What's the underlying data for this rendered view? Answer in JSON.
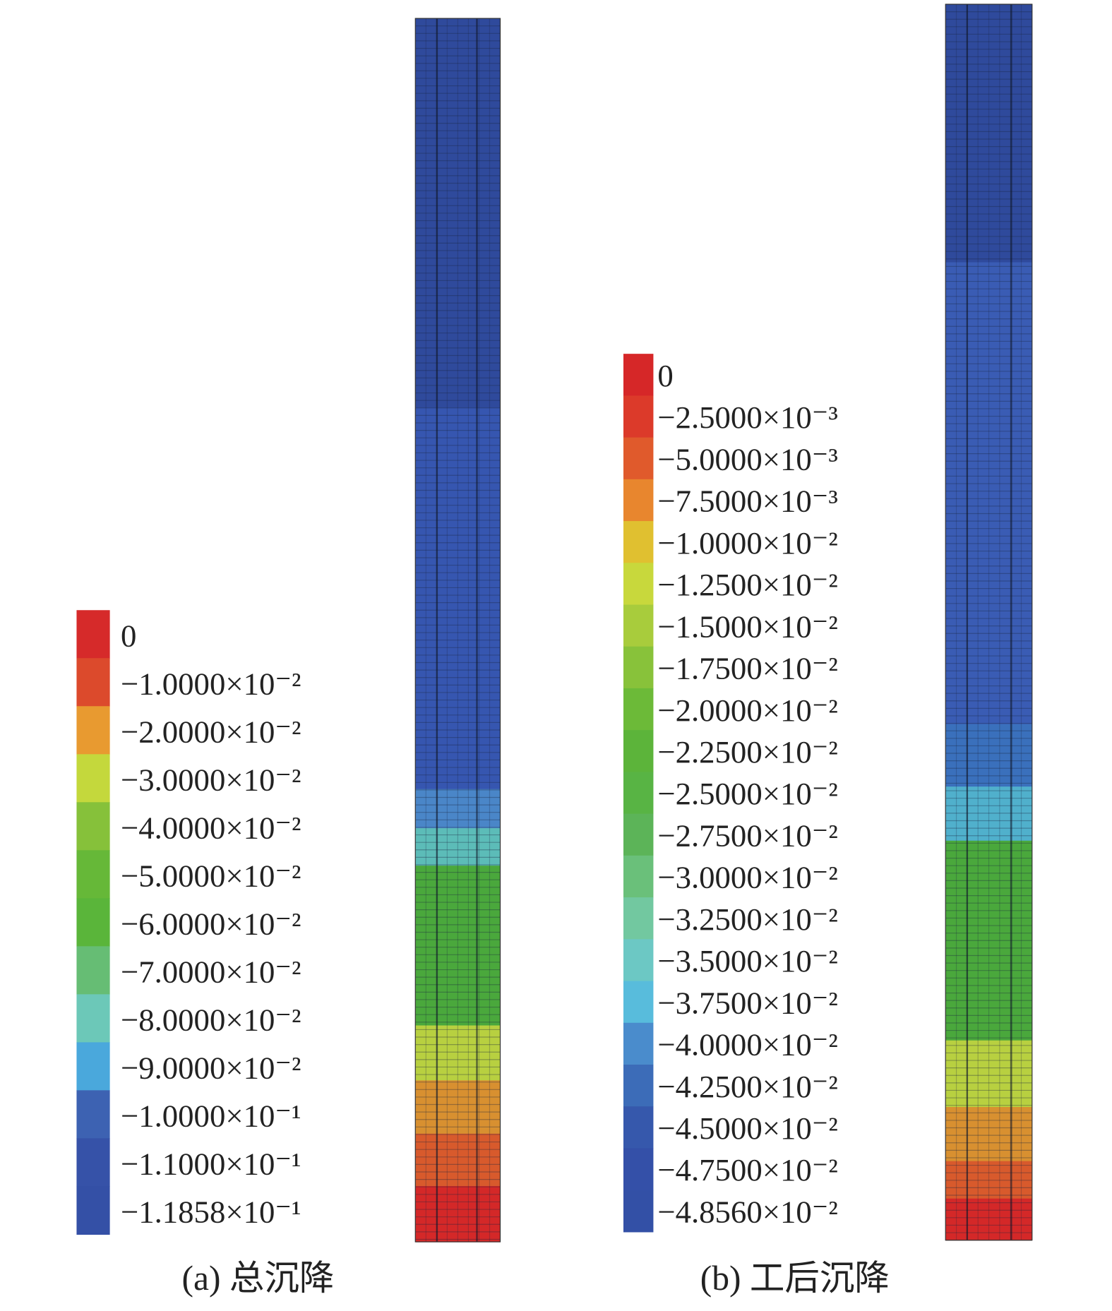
{
  "panels": [
    {
      "caption": "(a) 总沉降",
      "legend": {
        "labels": [
          "0",
          "−1.0000×10⁻²",
          "−2.0000×10⁻²",
          "−3.0000×10⁻²",
          "−4.0000×10⁻²",
          "−5.0000×10⁻²",
          "−6.0000×10⁻²",
          "−7.0000×10⁻²",
          "−8.0000×10⁻²",
          "−9.0000×10⁻²",
          "−1.0000×10⁻¹",
          "−1.1000×10⁻¹",
          "−1.1858×10⁻¹"
        ],
        "colors": [
          "#d62a2a",
          "#dc4a2c",
          "#e89a30",
          "#c4d83c",
          "#86c13a",
          "#66b838",
          "#5ab53a",
          "#66bd74",
          "#6cc8b8",
          "#4aa8dc",
          "#3d62b2",
          "#3652a8",
          "#3450a6"
        ]
      }
    },
    {
      "caption": "(b) 工后沉降",
      "legend": {
        "labels": [
          "0",
          "−2.5000×10⁻³",
          "−5.0000×10⁻³",
          "−7.5000×10⁻³",
          "−1.0000×10⁻²",
          "−1.2500×10⁻²",
          "−1.5000×10⁻²",
          "−1.7500×10⁻²",
          "−2.0000×10⁻²",
          "−2.2500×10⁻²",
          "−2.5000×10⁻²",
          "−2.7500×10⁻²",
          "−3.0000×10⁻²",
          "−3.2500×10⁻²",
          "−3.5000×10⁻²",
          "−3.7500×10⁻²",
          "−4.0000×10⁻²",
          "−4.2500×10⁻²",
          "−4.5000×10⁻²",
          "−4.7500×10⁻²",
          "−4.8560×10⁻²"
        ],
        "colors": [
          "#d62728",
          "#dc3a2a",
          "#e05a2c",
          "#e8862e",
          "#e0c030",
          "#c8d83c",
          "#a8cc3c",
          "#88c23a",
          "#6cba38",
          "#5cb43a",
          "#58b444",
          "#5cb458",
          "#6ac07a",
          "#72c8a0",
          "#6cc8c4",
          "#58bcdc",
          "#4a8ccc",
          "#3c6cb8",
          "#3658ac",
          "#3450a8",
          "#3350a6"
        ]
      }
    }
  ]
}
